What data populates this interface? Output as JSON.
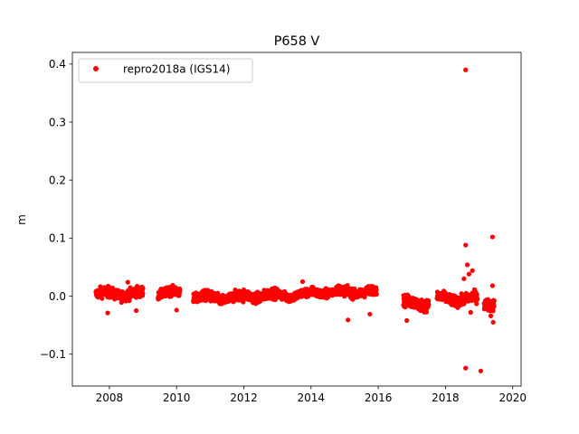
{
  "chart_data": {
    "type": "scatter",
    "title": "P658 V",
    "xlabel": "",
    "ylabel": "m",
    "xlim": [
      2006.9,
      2020.25
    ],
    "ylim": [
      -0.155,
      0.42
    ],
    "x_ticks": [
      2008,
      2010,
      2012,
      2014,
      2016,
      2018,
      2020
    ],
    "y_ticks": [
      -0.1,
      0.0,
      0.1,
      0.2,
      0.3,
      0.4
    ],
    "x_tick_labels": [
      "2008",
      "2010",
      "2012",
      "2014",
      "2016",
      "2018",
      "2020"
    ],
    "y_tick_labels": [
      "−0.1",
      "0.0",
      "0.1",
      "0.2",
      "0.3",
      "0.4"
    ],
    "grid": false,
    "legend_position": "top-left",
    "series": [
      {
        "name": "repro2018a (IGS14)",
        "color": "#ff0000",
        "marker": "circle",
        "segments": [
          {
            "x_start": 2007.6,
            "x_end": 2009.0,
            "center": 0.004,
            "spread": 0.008
          },
          {
            "x_start": 2009.45,
            "x_end": 2010.1,
            "center": 0.005,
            "spread": 0.007
          },
          {
            "x_start": 2010.5,
            "x_end": 2012.0,
            "center": -0.003,
            "spread": 0.008
          },
          {
            "x_start": 2012.0,
            "x_end": 2013.0,
            "center": 0.001,
            "spread": 0.008
          },
          {
            "x_start": 2013.0,
            "x_end": 2014.0,
            "center": 0.002,
            "spread": 0.007
          },
          {
            "x_start": 2014.0,
            "x_end": 2015.95,
            "center": 0.007,
            "spread": 0.007
          },
          {
            "x_start": 2016.75,
            "x_end": 2017.5,
            "center": -0.012,
            "spread": 0.009
          },
          {
            "x_start": 2017.75,
            "x_end": 2018.95,
            "center": -0.005,
            "spread": 0.008
          },
          {
            "x_start": 2019.15,
            "x_end": 2019.45,
            "center": -0.012,
            "spread": 0.009
          }
        ],
        "highlighted_points": [
          {
            "x": 2018.6,
            "y": 0.39
          },
          {
            "x": 2018.6,
            "y": 0.088
          },
          {
            "x": 2019.4,
            "y": 0.102
          },
          {
            "x": 2018.6,
            "y": -0.124
          },
          {
            "x": 2019.05,
            "y": -0.129
          },
          {
            "x": 2019.42,
            "y": -0.045
          },
          {
            "x": 2015.1,
            "y": -0.041
          },
          {
            "x": 2016.85,
            "y": -0.042
          },
          {
            "x": 2007.95,
            "y": -0.029
          },
          {
            "x": 2008.8,
            "y": -0.025
          },
          {
            "x": 2010.0,
            "y": -0.024
          },
          {
            "x": 2015.75,
            "y": -0.031
          },
          {
            "x": 2018.65,
            "y": 0.054
          },
          {
            "x": 2018.8,
            "y": 0.044
          },
          {
            "x": 2018.7,
            "y": 0.038
          },
          {
            "x": 2018.55,
            "y": 0.03
          },
          {
            "x": 2019.4,
            "y": 0.018
          },
          {
            "x": 2019.35,
            "y": -0.034
          },
          {
            "x": 2018.75,
            "y": -0.028
          },
          {
            "x": 2013.75,
            "y": 0.025
          },
          {
            "x": 2008.55,
            "y": 0.024
          }
        ]
      }
    ]
  }
}
